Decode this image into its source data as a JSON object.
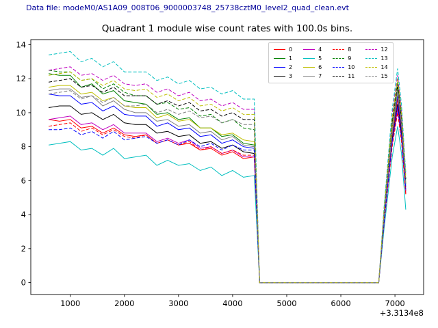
{
  "header": {
    "data_file": "Data file: modeM0/AS1A09_008T06_9000003748_25738cztM0_level2_quad_clean.evt"
  },
  "colors": {
    "header_text": "#000099",
    "axes": "#000000",
    "background": "#ffffff"
  },
  "chart_data": {
    "type": "line",
    "title": "Quadrant 1 module wise count rates with 100.0s bins.",
    "xlabel": "",
    "ylabel": "",
    "x_offset_label": "+3.3134e8",
    "xlim": [
      270,
      7530
    ],
    "ylim": [
      -0.7,
      14.3
    ],
    "x_ticks": [
      1000,
      2000,
      3000,
      4000,
      5000,
      6000,
      7000
    ],
    "y_ticks": [
      0,
      2,
      4,
      6,
      8,
      10,
      12,
      14
    ],
    "grid": false,
    "legend": {
      "position": "upper right",
      "columns": 4,
      "fill_order": "column"
    },
    "x": [
      600,
      800,
      1000,
      1200,
      1400,
      1600,
      1800,
      2000,
      2200,
      2400,
      2600,
      2800,
      3000,
      3200,
      3400,
      3600,
      3800,
      4000,
      4200,
      4400,
      4500,
      5000,
      5500,
      6000,
      6500,
      6700,
      6800,
      6950,
      7050,
      7120,
      7200
    ],
    "series": [
      {
        "name": "0",
        "color": "#ff0000",
        "style": "solid",
        "values": [
          9.6,
          9.5,
          9.6,
          9.1,
          9.2,
          8.8,
          9.1,
          8.7,
          8.6,
          8.7,
          8.2,
          8.4,
          8.1,
          8.2,
          7.8,
          7.9,
          7.5,
          7.7,
          7.3,
          7.4,
          0,
          0,
          0,
          0,
          0,
          0,
          3.8,
          8.6,
          10.8,
          9.0,
          5.2
        ]
      },
      {
        "name": "1",
        "color": "#008000",
        "style": "solid",
        "values": [
          12.3,
          12.2,
          12.2,
          11.5,
          11.7,
          11.1,
          11.3,
          10.7,
          10.6,
          10.5,
          9.9,
          10.0,
          9.6,
          9.7,
          9.1,
          9.1,
          8.6,
          8.7,
          8.2,
          8.1,
          0,
          0,
          0,
          0,
          0,
          0,
          4.1,
          9.3,
          11.5,
          9.6,
          5.8
        ]
      },
      {
        "name": "2",
        "color": "#0000ff",
        "style": "solid",
        "values": [
          11.1,
          11.0,
          11.0,
          10.5,
          10.6,
          10.1,
          10.4,
          9.9,
          9.8,
          9.8,
          9.2,
          9.4,
          9.0,
          9.1,
          8.6,
          8.7,
          8.2,
          8.4,
          8.0,
          7.9,
          0,
          0,
          0,
          0,
          0,
          0,
          3.9,
          8.8,
          11.0,
          9.2,
          5.6
        ]
      },
      {
        "name": "3",
        "color": "#000000",
        "style": "solid",
        "values": [
          10.3,
          10.4,
          10.4,
          9.9,
          10.0,
          9.6,
          9.9,
          9.4,
          9.3,
          9.3,
          8.8,
          8.9,
          8.6,
          8.7,
          8.2,
          8.3,
          7.9,
          8.1,
          7.7,
          7.6,
          0,
          0,
          0,
          0,
          0,
          0,
          3.7,
          8.4,
          10.5,
          8.8,
          5.4
        ]
      },
      {
        "name": "4",
        "color": "#bf00bf",
        "style": "solid",
        "values": [
          9.6,
          9.7,
          9.8,
          9.3,
          9.4,
          9.0,
          9.3,
          8.8,
          8.8,
          8.8,
          8.3,
          8.5,
          8.2,
          8.4,
          7.9,
          8.0,
          7.6,
          7.8,
          7.4,
          7.4,
          0,
          0,
          0,
          0,
          0,
          0,
          3.6,
          8.2,
          10.2,
          8.5,
          5.3
        ]
      },
      {
        "name": "5",
        "color": "#00bfbf",
        "style": "solid",
        "values": [
          8.1,
          8.2,
          8.3,
          7.8,
          7.9,
          7.5,
          7.9,
          7.3,
          7.4,
          7.5,
          6.9,
          7.2,
          6.9,
          7.0,
          6.6,
          6.8,
          6.3,
          6.6,
          6.2,
          6.3,
          0,
          0,
          0,
          0,
          0,
          0,
          3.2,
          7.4,
          9.2,
          7.6,
          4.3
        ]
      },
      {
        "name": "6",
        "color": "#bfbf00",
        "style": "solid",
        "values": [
          11.5,
          11.6,
          11.6,
          11.1,
          11.2,
          10.7,
          10.9,
          10.4,
          10.3,
          10.3,
          9.7,
          9.9,
          9.5,
          9.6,
          9.1,
          9.1,
          8.7,
          8.8,
          8.4,
          8.3,
          0,
          0,
          0,
          0,
          0,
          0,
          4.0,
          9.1,
          11.3,
          9.4,
          5.9
        ]
      },
      {
        "name": "7",
        "color": "#808080",
        "style": "solid",
        "values": [
          11.3,
          11.4,
          11.4,
          10.9,
          11.0,
          10.4,
          10.7,
          10.2,
          10.0,
          10.0,
          9.5,
          9.6,
          9.2,
          9.3,
          8.8,
          8.9,
          8.4,
          8.6,
          8.1,
          8.0,
          0,
          0,
          0,
          0,
          0,
          0,
          3.9,
          8.8,
          11.2,
          9.3,
          5.7
        ]
      },
      {
        "name": "8",
        "color": "#ff0000",
        "style": "dashed",
        "values": [
          9.2,
          9.3,
          9.4,
          8.9,
          9.1,
          8.7,
          9.0,
          8.6,
          8.5,
          8.7,
          8.2,
          8.4,
          8.1,
          8.3,
          7.8,
          8.0,
          7.6,
          7.8,
          7.5,
          7.5,
          0,
          0,
          0,
          0,
          0,
          0,
          3.5,
          8.0,
          10.0,
          8.3,
          5.2
        ]
      },
      {
        "name": "9",
        "color": "#008000",
        "style": "dashed",
        "values": [
          12.5,
          12.4,
          12.4,
          11.9,
          12.0,
          11.4,
          11.7,
          11.2,
          11.0,
          11.0,
          10.5,
          10.6,
          10.2,
          10.3,
          9.8,
          9.9,
          9.4,
          9.6,
          9.1,
          9.0,
          0,
          0,
          0,
          0,
          0,
          0,
          4.2,
          9.5,
          11.8,
          9.8,
          6.0
        ]
      },
      {
        "name": "10",
        "color": "#0000ff",
        "style": "dashed",
        "values": [
          9.0,
          9.0,
          9.1,
          8.7,
          8.9,
          8.5,
          8.9,
          8.4,
          8.5,
          8.6,
          8.2,
          8.4,
          8.1,
          8.4,
          8.0,
          8.2,
          7.8,
          8.1,
          7.8,
          7.8,
          0,
          0,
          0,
          0,
          0,
          0,
          3.6,
          8.3,
          10.4,
          8.6,
          5.5
        ]
      },
      {
        "name": "11",
        "color": "#000000",
        "style": "dashed",
        "values": [
          11.8,
          11.9,
          12.0,
          11.5,
          11.6,
          11.2,
          11.5,
          11.0,
          11.0,
          11.0,
          10.5,
          10.7,
          10.4,
          10.6,
          10.1,
          10.2,
          9.8,
          10.0,
          9.6,
          9.6,
          0,
          0,
          0,
          0,
          0,
          0,
          4.1,
          9.4,
          11.6,
          9.7,
          6.1
        ]
      },
      {
        "name": "12",
        "color": "#bf00bf",
        "style": "dashed",
        "values": [
          12.5,
          12.6,
          12.7,
          12.2,
          12.3,
          11.9,
          12.2,
          11.7,
          11.6,
          11.7,
          11.2,
          11.4,
          11.0,
          11.2,
          10.7,
          10.8,
          10.4,
          10.6,
          10.2,
          10.2,
          0,
          0,
          0,
          0,
          0,
          0,
          4.4,
          9.9,
          12.2,
          10.1,
          6.3
        ]
      },
      {
        "name": "13",
        "color": "#00bfbf",
        "style": "dashed",
        "values": [
          13.4,
          13.5,
          13.6,
          13.0,
          13.2,
          12.7,
          13.0,
          12.4,
          12.4,
          12.4,
          11.9,
          12.1,
          11.7,
          11.9,
          11.4,
          11.5,
          11.1,
          11.3,
          10.8,
          10.8,
          0,
          0,
          0,
          0,
          0,
          0,
          4.5,
          10.2,
          12.6,
          10.5,
          6.5
        ]
      },
      {
        "name": "14",
        "color": "#bfbf00",
        "style": "dashed",
        "values": [
          12.2,
          12.3,
          12.4,
          11.9,
          12.0,
          11.6,
          11.9,
          11.4,
          11.3,
          11.4,
          10.9,
          11.1,
          10.7,
          10.9,
          10.4,
          10.5,
          10.1,
          10.3,
          9.9,
          9.9,
          0,
          0,
          0,
          0,
          0,
          0,
          4.3,
          9.7,
          12.0,
          10.0,
          6.2
        ]
      },
      {
        "name": "15",
        "color": "#808080",
        "style": "dashed",
        "values": [
          11.1,
          11.2,
          11.3,
          10.8,
          11.0,
          10.6,
          10.9,
          10.4,
          10.4,
          10.5,
          10.0,
          10.2,
          9.9,
          10.1,
          9.7,
          9.8,
          9.4,
          9.6,
          9.3,
          9.3,
          0,
          0,
          0,
          0,
          0,
          0,
          4.0,
          9.2,
          11.4,
          9.5,
          5.8
        ]
      }
    ]
  }
}
